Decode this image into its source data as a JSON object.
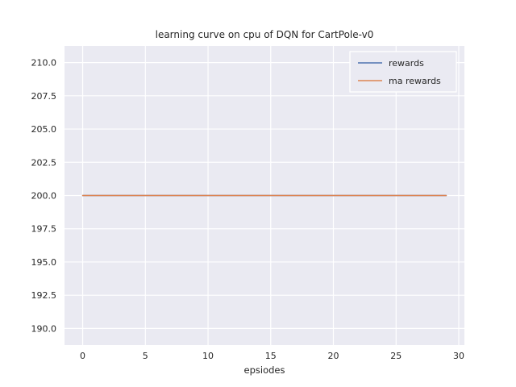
{
  "chart_data": {
    "type": "line",
    "title": "learning curve on cpu of DQN for CartPole-v0",
    "xlabel": "epsiodes",
    "ylabel": "",
    "x": [
      0,
      1,
      2,
      3,
      4,
      5,
      6,
      7,
      8,
      9,
      10,
      11,
      12,
      13,
      14,
      15,
      16,
      17,
      18,
      19,
      20,
      21,
      22,
      23,
      24,
      25,
      26,
      27,
      28,
      29
    ],
    "series": [
      {
        "name": "rewards",
        "color": "#4c72b0",
        "values": [
          200,
          200,
          200,
          200,
          200,
          200,
          200,
          200,
          200,
          200,
          200,
          200,
          200,
          200,
          200,
          200,
          200,
          200,
          200,
          200,
          200,
          200,
          200,
          200,
          200,
          200,
          200,
          200,
          200,
          200
        ]
      },
      {
        "name": "ma rewards",
        "color": "#dd8452",
        "values": [
          200,
          200,
          200,
          200,
          200,
          200,
          200,
          200,
          200,
          200,
          200,
          200,
          200,
          200,
          200,
          200,
          200,
          200,
          200,
          200,
          200,
          200,
          200,
          200,
          200,
          200,
          200,
          200,
          200,
          200
        ]
      }
    ],
    "xlim": [
      -1.45,
      30.45
    ],
    "ylim": [
      188.75,
      211.25
    ],
    "xticks": [
      0,
      5,
      10,
      15,
      20,
      25,
      30
    ],
    "xtick_labels": [
      "0",
      "5",
      "10",
      "15",
      "20",
      "25",
      "30"
    ],
    "yticks": [
      190.0,
      192.5,
      195.0,
      197.5,
      200.0,
      202.5,
      205.0,
      207.5,
      210.0
    ],
    "ytick_labels": [
      "190.0",
      "192.5",
      "195.0",
      "197.5",
      "200.0",
      "202.5",
      "205.0",
      "207.5",
      "210.0"
    ],
    "grid": true,
    "legend_position": "upper right",
    "plot_bg": "#eaeaf2",
    "grid_color": "#ffffff",
    "legend_bg": "#eaeaf2",
    "legend_border": "#ffffff",
    "text_color": "#262626"
  }
}
